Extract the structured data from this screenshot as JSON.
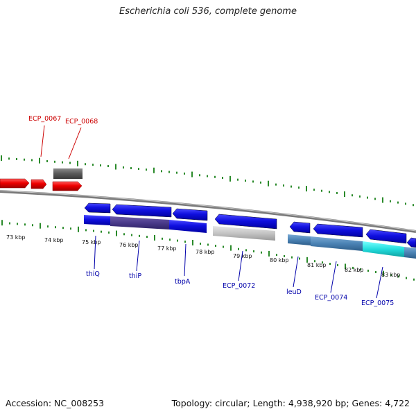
{
  "title": "Escherichia coli 536, complete genome",
  "footer": {
    "accession": "Accession: NC_008253",
    "summary": "Topology: circular; Length: 4,938,920 bp; Genes: 4,722"
  },
  "colors": {
    "minus_strand": "#e00000",
    "plus_strand": "#1010dd",
    "pseudo": "#606060",
    "light": "#c8c8c8",
    "steel": "#4a82b4",
    "purple": "#4a3a8a",
    "cyan": "#22dddd",
    "backbone": "#888888",
    "tick": "#2a8a2a",
    "label_red": "#cc0000",
    "label_blue": "#0000aa"
  },
  "scale": {
    "labels": [
      "73 kbp",
      "74 kbp",
      "75 kbp",
      "76 kbp",
      "77 kbp",
      "78 kbp",
      "79 kbp",
      "80 kbp",
      "81 kbp",
      "82 kbp",
      "83 kbp"
    ]
  },
  "gene_labels": [
    {
      "name": "ECP_0067",
      "strand": "top"
    },
    {
      "name": "ECP_0068",
      "strand": "top"
    },
    {
      "name": "thiQ",
      "strand": "bottom"
    },
    {
      "name": "thiP",
      "strand": "bottom"
    },
    {
      "name": "tbpA",
      "strand": "bottom"
    },
    {
      "name": "ECP_0072",
      "strand": "bottom"
    },
    {
      "name": "leuD",
      "strand": "bottom"
    },
    {
      "name": "ECP_0074",
      "strand": "bottom"
    },
    {
      "name": "ECP_0075",
      "strand": "bottom"
    }
  ]
}
